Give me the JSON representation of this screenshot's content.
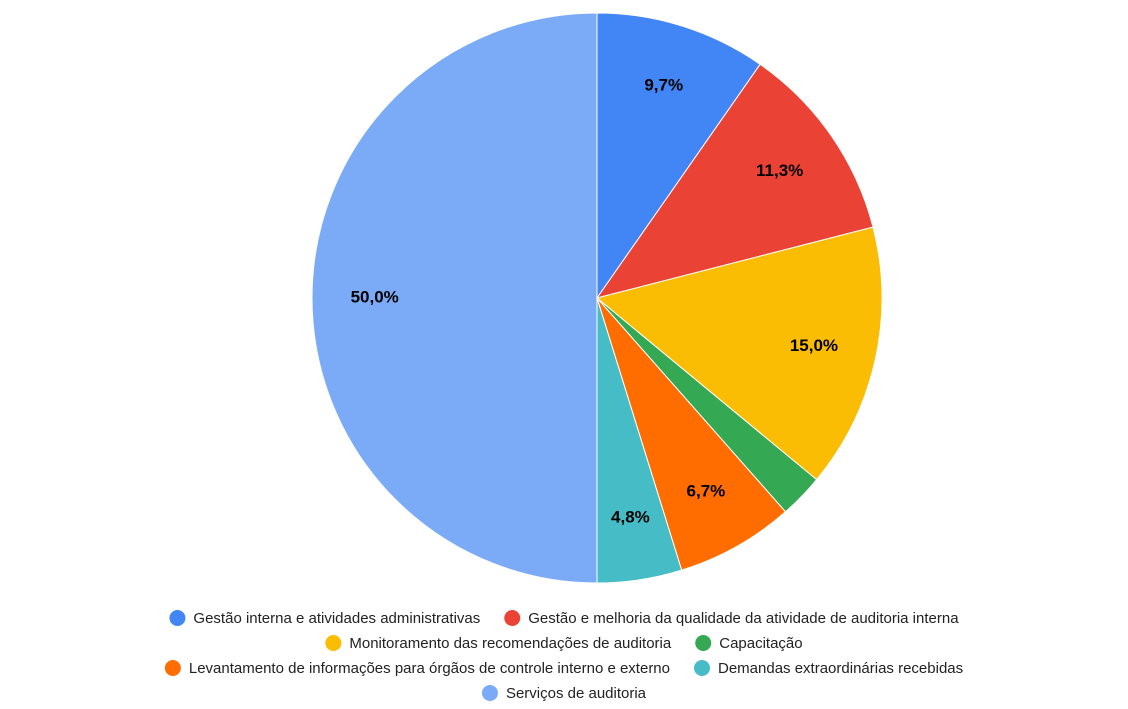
{
  "chart_data": {
    "type": "pie",
    "categories": [
      "Gestão interna e atividades administrativas",
      "Gestão e melhoria da qualidade da atividade de auditoria interna",
      "Monitoramento das recomendações de auditoria",
      "Capacitação",
      "Levantamento de informações para órgãos de controle interno e externo",
      "Demandas extraordinárias recebidas",
      "Serviços de auditoria"
    ],
    "values": [
      9.7,
      11.3,
      15.0,
      2.5,
      6.7,
      4.8,
      50.0
    ],
    "value_labels": [
      "9,7%",
      "11,3%",
      "15,0%",
      null,
      "6,7%",
      "4,8%",
      "50,0%"
    ],
    "colors": [
      "#4285f4",
      "#ea4335",
      "#fbbc04",
      "#34a853",
      "#ff6d01",
      "#46bdc6",
      "#7baaf7"
    ],
    "legend": "bottom"
  }
}
